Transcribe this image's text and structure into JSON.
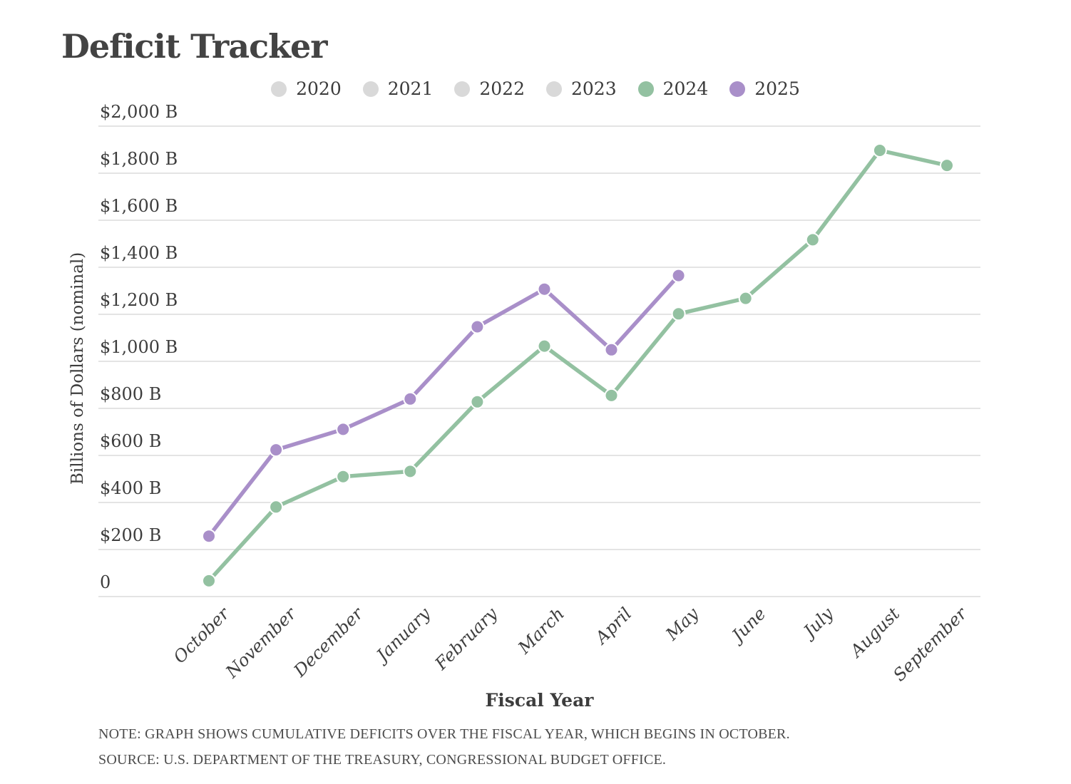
{
  "title": "Deficit Tracker",
  "legend": {
    "items": [
      {
        "label": "2020",
        "color": "#d9d9d9",
        "active": false
      },
      {
        "label": "2021",
        "color": "#d9d9d9",
        "active": false
      },
      {
        "label": "2022",
        "color": "#d9d9d9",
        "active": false
      },
      {
        "label": "2023",
        "color": "#d9d9d9",
        "active": false
      },
      {
        "label": "2024",
        "color": "#93c1a1",
        "active": true
      },
      {
        "label": "2025",
        "color": "#a98fc9",
        "active": true
      }
    ]
  },
  "axes": {
    "y_title": "Billions of Dollars (nominal)",
    "x_title": "Fiscal Year"
  },
  "footnotes": {
    "note": "NOTE: GRAPH SHOWS CUMULATIVE DEFICITS OVER THE FISCAL YEAR, WHICH BEGINS IN OCTOBER.",
    "source": "SOURCE: U.S. DEPARTMENT OF THE TREASURY, CONGRESSIONAL BUDGET OFFICE."
  },
  "colors": {
    "grid": "#dcdcdc",
    "inactive_gray": "#d9d9d9",
    "fy2024_green": "#93c1a1",
    "fy2025_purple": "#a98fc9",
    "text_dark": "#3d3d3d"
  },
  "chart_data": {
    "type": "line",
    "title": "Deficit Tracker",
    "xlabel": "Fiscal Year",
    "ylabel": "Billions of Dollars (nominal)",
    "categories": [
      "October",
      "November",
      "December",
      "January",
      "February",
      "March",
      "April",
      "May",
      "June",
      "July",
      "August",
      "September"
    ],
    "ylim": [
      0,
      2000
    ],
    "grid": "horizontal",
    "legend_position": "top-center",
    "y_ticks": [
      {
        "value": 2000,
        "label": "$2,000 B"
      },
      {
        "value": 1800,
        "label": "$1,800 B"
      },
      {
        "value": 1600,
        "label": "$1,600 B"
      },
      {
        "value": 1400,
        "label": "$1,400 B"
      },
      {
        "value": 1200,
        "label": "$1,200 B"
      },
      {
        "value": 1000,
        "label": "$1,000 B"
      },
      {
        "value": 800,
        "label": "$800 B"
      },
      {
        "value": 600,
        "label": "$600 B"
      },
      {
        "value": 400,
        "label": "$400 B"
      },
      {
        "value": 200,
        "label": "$200 B"
      },
      {
        "value": 0,
        "label": "0"
      }
    ],
    "series": [
      {
        "name": "2020",
        "color": "#d9d9d9",
        "visible": false,
        "values": []
      },
      {
        "name": "2021",
        "color": "#d9d9d9",
        "visible": false,
        "values": []
      },
      {
        "name": "2022",
        "color": "#d9d9d9",
        "visible": false,
        "values": []
      },
      {
        "name": "2023",
        "color": "#d9d9d9",
        "visible": false,
        "values": []
      },
      {
        "name": "2024",
        "color": "#93c1a1",
        "visible": true,
        "values": [
          67,
          381,
          510,
          532,
          828,
          1065,
          855,
          1202,
          1268,
          1517,
          1897,
          1833
        ]
      },
      {
        "name": "2025",
        "color": "#a98fc9",
        "visible": true,
        "values": [
          257,
          624,
          711,
          840,
          1147,
          1307,
          1049,
          1365
        ]
      }
    ]
  }
}
